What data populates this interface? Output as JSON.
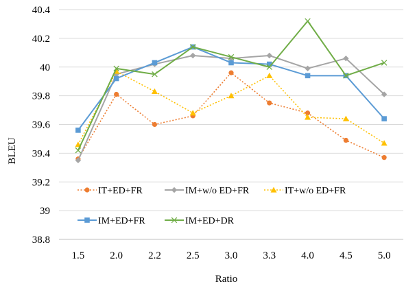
{
  "chart_data": {
    "type": "line",
    "title": "",
    "xlabel": "Ratio",
    "ylabel": "BLEU",
    "categories": [
      "1.5",
      "2.0",
      "2.2",
      "2.5",
      "3.0",
      "3.3",
      "4.0",
      "4.5",
      "5.0"
    ],
    "ylim": [
      38.8,
      40.4
    ],
    "yticks": [
      "38.8",
      "39",
      "39.2",
      "39.4",
      "39.6",
      "39.8",
      "40",
      "40.2",
      "40.4"
    ],
    "grid": "horizontal",
    "legend_position": "inside-bottom-left",
    "series": [
      {
        "name": "IT+ED+FR",
        "color": "#ED7D31",
        "style": "dotted",
        "marker": "circle",
        "values": [
          39.36,
          39.81,
          39.6,
          39.66,
          39.96,
          39.75,
          39.68,
          39.49,
          39.37
        ]
      },
      {
        "name": "IM+w/o ED+FR",
        "color": "#A5A5A5",
        "style": "solid",
        "marker": "diamond",
        "values": [
          39.35,
          39.95,
          40.02,
          40.08,
          40.06,
          40.08,
          39.99,
          40.06,
          39.81
        ]
      },
      {
        "name": "IT+w/o ED+FR",
        "color": "#FFC000",
        "style": "dotted",
        "marker": "triangle",
        "values": [
          39.46,
          39.97,
          39.83,
          39.68,
          39.8,
          39.94,
          39.65,
          39.64,
          39.47
        ]
      },
      {
        "name": "IM+ED+FR",
        "color": "#5B9BD5",
        "style": "solid",
        "marker": "square",
        "values": [
          39.56,
          39.92,
          40.03,
          40.14,
          40.03,
          40.02,
          39.94,
          39.94,
          39.64
        ]
      },
      {
        "name": "IM+ED+DR",
        "color": "#70AD47",
        "style": "solid",
        "marker": "x",
        "values": [
          39.42,
          39.99,
          39.95,
          40.14,
          40.07,
          40.0,
          40.32,
          39.94,
          40.03
        ]
      }
    ]
  }
}
